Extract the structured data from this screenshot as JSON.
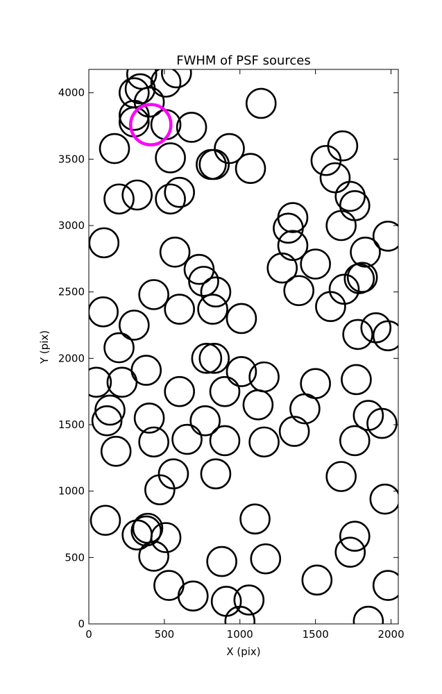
{
  "chart_data": {
    "type": "scatter",
    "title": "FWHM of PSF sources",
    "xlabel": "X (pix)",
    "ylabel": "Y (pix)",
    "xlim": [
      0,
      2048
    ],
    "ylim": [
      0,
      4176
    ],
    "xticks": [
      0,
      500,
      1000,
      1500,
      2000
    ],
    "yticks": [
      0,
      500,
      1000,
      1500,
      2000,
      2500,
      3000,
      3500,
      4000
    ],
    "grid": false,
    "legend": "none",
    "marker": "open circle",
    "colors": {
      "normal": "#000000",
      "highlight": "#ff00ff",
      "background": "#ffffff"
    },
    "series": [
      {
        "values": [
          [
            580,
            4150
          ],
          [
            350,
            4140
          ],
          [
            510,
            4080
          ],
          [
            340,
            4030
          ],
          [
            300,
            4000
          ],
          [
            400,
            3930
          ],
          [
            1140,
            3920
          ],
          [
            300,
            3830
          ],
          [
            300,
            3780
          ],
          [
            510,
            3760
          ],
          [
            680,
            3740
          ],
          [
            1680,
            3600
          ],
          [
            930,
            3580
          ],
          [
            170,
            3580
          ],
          [
            540,
            3510
          ],
          [
            830,
            3460
          ],
          [
            810,
            3460
          ],
          [
            1570,
            3490
          ],
          [
            1070,
            3430
          ],
          [
            1630,
            3360
          ],
          [
            600,
            3250
          ],
          [
            320,
            3230
          ],
          [
            200,
            3200
          ],
          [
            540,
            3200
          ],
          [
            1730,
            3220
          ],
          [
            1760,
            3150
          ],
          [
            1350,
            3060
          ],
          [
            1320,
            2980
          ],
          [
            1670,
            3000
          ],
          [
            1980,
            2920
          ],
          [
            100,
            2870
          ],
          [
            1350,
            2850
          ],
          [
            570,
            2800
          ],
          [
            1830,
            2800
          ],
          [
            1500,
            2710
          ],
          [
            1280,
            2680
          ],
          [
            730,
            2670
          ],
          [
            760,
            2580
          ],
          [
            1810,
            2610
          ],
          [
            1790,
            2600
          ],
          [
            840,
            2500
          ],
          [
            430,
            2480
          ],
          [
            1690,
            2520
          ],
          [
            1390,
            2510
          ],
          [
            1600,
            2390
          ],
          [
            600,
            2370
          ],
          [
            820,
            2370
          ],
          [
            95,
            2350
          ],
          [
            1010,
            2300
          ],
          [
            300,
            2250
          ],
          [
            1900,
            2230
          ],
          [
            1980,
            2170
          ],
          [
            1780,
            2180
          ],
          [
            200,
            2080
          ],
          [
            780,
            2000
          ],
          [
            830,
            2000
          ],
          [
            380,
            1910
          ],
          [
            1010,
            1900
          ],
          [
            1160,
            1860
          ],
          [
            50,
            1820
          ],
          [
            220,
            1820
          ],
          [
            1500,
            1810
          ],
          [
            1770,
            1840
          ],
          [
            600,
            1750
          ],
          [
            900,
            1750
          ],
          [
            1120,
            1650
          ],
          [
            1430,
            1620
          ],
          [
            140,
            1610
          ],
          [
            1850,
            1570
          ],
          [
            1940,
            1510
          ],
          [
            770,
            1530
          ],
          [
            400,
            1550
          ],
          [
            120,
            1530
          ],
          [
            1360,
            1450
          ],
          [
            430,
            1370
          ],
          [
            650,
            1390
          ],
          [
            900,
            1380
          ],
          [
            1160,
            1370
          ],
          [
            1760,
            1380
          ],
          [
            180,
            1300
          ],
          [
            560,
            1130
          ],
          [
            840,
            1130
          ],
          [
            1670,
            1110
          ],
          [
            470,
            1010
          ],
          [
            1960,
            940
          ],
          [
            1100,
            790
          ],
          [
            110,
            780
          ],
          [
            390,
            720
          ],
          [
            380,
            700
          ],
          [
            320,
            670
          ],
          [
            510,
            650
          ],
          [
            1760,
            660
          ],
          [
            1730,
            540
          ],
          [
            430,
            510
          ],
          [
            880,
            470
          ],
          [
            1170,
            490
          ],
          [
            1510,
            330
          ],
          [
            530,
            290
          ],
          [
            1980,
            290
          ],
          [
            690,
            210
          ],
          [
            1060,
            180
          ],
          [
            910,
            170
          ],
          [
            1850,
            20
          ],
          [
            1000,
            20
          ]
        ]
      },
      {
        "values": [
          [
            410,
            3760
          ]
        ]
      }
    ]
  }
}
